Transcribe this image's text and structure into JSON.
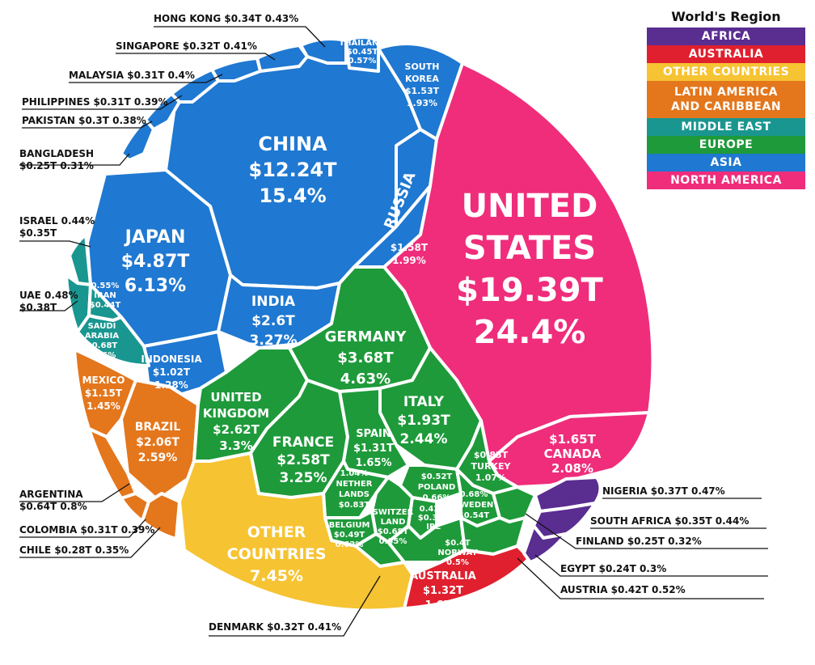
{
  "chart_data": {
    "type": "voronoi",
    "unit": "T",
    "legend": {
      "title": "World's Region",
      "items": [
        {
          "label": "AFRICA",
          "color": "#5a2d91"
        },
        {
          "label": "AUSTRALIA",
          "color": "#e0202e"
        },
        {
          "label": "OTHER COUNTRIES",
          "color": "#f6c332"
        },
        {
          "label": "LATIN AMERICA AND CARIBBEAN",
          "lines": [
            "LATIN AMERICA",
            "AND CARIBBEAN"
          ],
          "color": "#e4761c"
        },
        {
          "label": "MIDDLE EAST",
          "color": "#1a9690"
        },
        {
          "label": "EUROPE",
          "color": "#1e9a3a"
        },
        {
          "label": "ASIA",
          "color": "#1f78d1"
        },
        {
          "label": "NORTH AMERICA",
          "color": "#ef2d7b"
        }
      ]
    },
    "countries": [
      {
        "name": "UNITED STATES",
        "region": "NORTH AMERICA",
        "gdp": 19.39,
        "gdp_label": "$19.39T",
        "share": "24.4%"
      },
      {
        "name": "CHINA",
        "region": "ASIA",
        "gdp": 12.24,
        "gdp_label": "$12.24T",
        "share": "15.4%"
      },
      {
        "name": "JAPAN",
        "region": "ASIA",
        "gdp": 4.87,
        "gdp_label": "$4.87T",
        "share": "6.13%"
      },
      {
        "name": "GERMANY",
        "region": "EUROPE",
        "gdp": 3.68,
        "gdp_label": "$3.68T",
        "share": "4.63%"
      },
      {
        "name": "UNITED KINGDOM",
        "region": "EUROPE",
        "gdp": 2.62,
        "gdp_label": "$2.62T",
        "share": "3.3%"
      },
      {
        "name": "INDIA",
        "region": "ASIA",
        "gdp": 2.6,
        "gdp_label": "$2.6T",
        "share": "3.27%"
      },
      {
        "name": "FRANCE",
        "region": "EUROPE",
        "gdp": 2.58,
        "gdp_label": "$2.58T",
        "share": "3.25%"
      },
      {
        "name": "BRAZIL",
        "region": "LATIN AMERICA AND CARIBBEAN",
        "gdp": 2.06,
        "gdp_label": "$2.06T",
        "share": "2.59%"
      },
      {
        "name": "ITALY",
        "region": "EUROPE",
        "gdp": 1.93,
        "gdp_label": "$1.93T",
        "share": "2.44%"
      },
      {
        "name": "CANADA",
        "region": "NORTH AMERICA",
        "gdp": 1.65,
        "gdp_label": "$1.65T",
        "share": "2.08%"
      },
      {
        "name": "RUSSIA",
        "region": "ASIA",
        "gdp": 1.58,
        "gdp_label": "$1.58T",
        "share": "1.99%"
      },
      {
        "name": "SOUTH KOREA",
        "region": "ASIA",
        "gdp": 1.53,
        "gdp_label": "$1.53T",
        "share": "1.93%"
      },
      {
        "name": "AUSTRALIA",
        "region": "AUSTRALIA",
        "gdp": 1.32,
        "gdp_label": "$1.32T",
        "share": "1.67%"
      },
      {
        "name": "SPAIN",
        "region": "EUROPE",
        "gdp": 1.31,
        "gdp_label": "$1.31T",
        "share": "1.65%"
      },
      {
        "name": "MEXICO",
        "region": "LATIN AMERICA AND CARIBBEAN",
        "gdp": 1.15,
        "gdp_label": "$1.15T",
        "share": "1.45%"
      },
      {
        "name": "INDONESIA",
        "region": "ASIA",
        "gdp": 1.02,
        "gdp_label": "$1.02T",
        "share": "1.28%"
      },
      {
        "name": "TURKEY",
        "region": "EUROPE",
        "gdp": 0.85,
        "gdp_label": "$0.85T",
        "share": "1.07%"
      },
      {
        "name": "NETHERLANDS",
        "region": "EUROPE",
        "gdp": 0.83,
        "gdp_label": "$0.83T",
        "share": "1.04%"
      },
      {
        "name": "SAUDI ARABIA",
        "region": "MIDDLE EAST",
        "gdp": 0.68,
        "gdp_label": "$0.68T",
        "share": "0.86%"
      },
      {
        "name": "SWITZERLAND",
        "region": "EUROPE",
        "gdp": 0.68,
        "gdp_label": "$0.68T",
        "share": "0.85%"
      },
      {
        "name": "ARGENTINA",
        "region": "LATIN AMERICA AND CARIBBEAN",
        "gdp": 0.64,
        "gdp_label": "$0.64T",
        "share": "0.8%"
      },
      {
        "name": "SWEDEN",
        "region": "EUROPE",
        "gdp": 0.54,
        "gdp_label": "$0.54T",
        "share": "0.68%"
      },
      {
        "name": "POLAND",
        "region": "EUROPE",
        "gdp": 0.52,
        "gdp_label": "$0.52T",
        "share": "0.66%"
      },
      {
        "name": "BELGIUM",
        "region": "EUROPE",
        "gdp": 0.49,
        "gdp_label": "$0.49T",
        "share": "0.62%"
      },
      {
        "name": "THAILAND",
        "region": "ASIA",
        "gdp": 0.45,
        "gdp_label": "$0.45T",
        "share": "0.57%"
      },
      {
        "name": "IRAN",
        "region": "MIDDLE EAST",
        "gdp": 0.44,
        "gdp_label": "$0.44T",
        "share": "0.55%"
      },
      {
        "name": "AUSTRIA",
        "region": "EUROPE",
        "gdp": 0.42,
        "gdp_label": "$0.42T",
        "share": "0.52%"
      },
      {
        "name": "NORWAY",
        "region": "EUROPE",
        "gdp": 0.4,
        "gdp_label": "$0.4T",
        "share": "0.5%"
      },
      {
        "name": "UAE",
        "region": "MIDDLE EAST",
        "gdp": 0.38,
        "gdp_label": "$0.38T",
        "share": "0.48%"
      },
      {
        "name": "NIGERIA",
        "region": "AFRICA",
        "gdp": 0.37,
        "gdp_label": "$0.37T",
        "share": "0.47%"
      },
      {
        "name": "ISRAEL",
        "region": "MIDDLE EAST",
        "gdp": 0.35,
        "gdp_label": "$0.35T",
        "share": "0.44%"
      },
      {
        "name": "SOUTH AFRICA",
        "region": "AFRICA",
        "gdp": 0.35,
        "gdp_label": "$0.35T",
        "share": "0.44%"
      },
      {
        "name": "HONG KONG",
        "region": "ASIA",
        "gdp": 0.34,
        "gdp_label": "$0.34T",
        "share": "0.43%"
      },
      {
        "name": "IRELAND",
        "short_name": "IRL",
        "region": "EUROPE",
        "gdp": 0.33,
        "gdp_label": "$0.33T",
        "share": "0.42%"
      },
      {
        "name": "DENMARK",
        "region": "EUROPE",
        "gdp": 0.32,
        "gdp_label": "$0.32T",
        "share": "0.41%"
      },
      {
        "name": "SINGAPORE",
        "region": "ASIA",
        "gdp": 0.32,
        "gdp_label": "$0.32T",
        "share": "0.41%"
      },
      {
        "name": "MALAYSIA",
        "region": "ASIA",
        "gdp": 0.31,
        "gdp_label": "$0.31T",
        "share": "0.4%"
      },
      {
        "name": "PHILIPPINES",
        "region": "ASIA",
        "gdp": 0.31,
        "gdp_label": "$0.31T",
        "share": "0.39%"
      },
      {
        "name": "COLOMBIA",
        "region": "LATIN AMERICA AND CARIBBEAN",
        "gdp": 0.31,
        "gdp_label": "$0.31T",
        "share": "0.39%"
      },
      {
        "name": "PAKISTAN",
        "region": "ASIA",
        "gdp": 0.3,
        "gdp_label": "$0.3T",
        "share": "0.38%"
      },
      {
        "name": "CHILE",
        "region": "LATIN AMERICA AND CARIBBEAN",
        "gdp": 0.28,
        "gdp_label": "$0.28T",
        "share": "0.35%"
      },
      {
        "name": "BANGLADESH",
        "region": "ASIA",
        "gdp": 0.25,
        "gdp_label": "$0.25T",
        "share": "0.31%"
      },
      {
        "name": "FINLAND",
        "region": "EUROPE",
        "gdp": 0.25,
        "gdp_label": "$0.25T",
        "share": "0.32%"
      },
      {
        "name": "EGYPT",
        "region": "AFRICA",
        "gdp": 0.24,
        "gdp_label": "$0.24T",
        "share": "0.3%"
      },
      {
        "name": "OTHER COUNTRIES",
        "region": "OTHER COUNTRIES",
        "gdp": null,
        "gdp_label": "",
        "share": "7.45%"
      }
    ]
  }
}
